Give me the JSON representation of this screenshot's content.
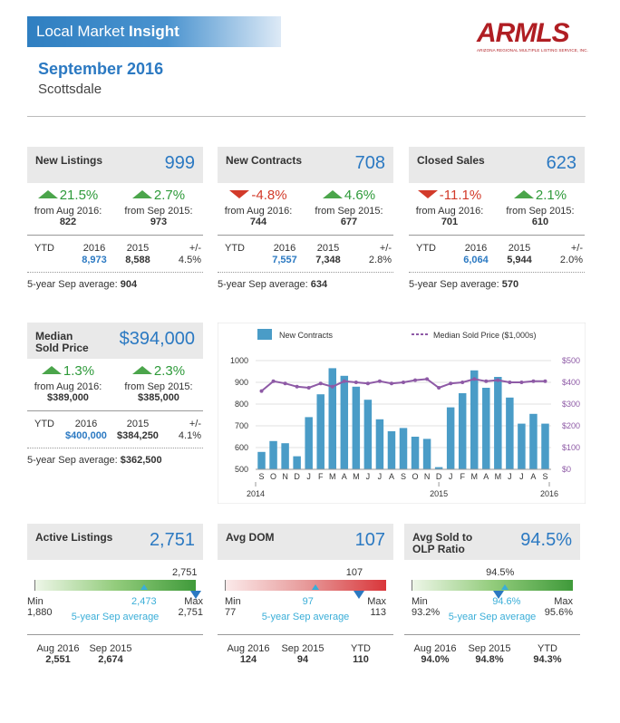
{
  "header": {
    "banner_prefix": "Local Market ",
    "banner_bold": "Insight",
    "logo_text": "ARMLS",
    "logo_sub": "ARIZONA REGIONAL MULTIPLE LISTING SERVICE, INC.",
    "title": "September 2016",
    "subtitle": "Scottsdale"
  },
  "new_listings": {
    "label": "New Listings",
    "value": "999",
    "chg1": {
      "pct": "21.5%",
      "dir": "up",
      "label": "from Aug 2016:",
      "val": "822"
    },
    "chg2": {
      "pct": "2.7%",
      "dir": "up",
      "label": "from Sep 2015:",
      "val": "973"
    },
    "ytd": {
      "label": "YTD",
      "y1": "2016",
      "y2": "2015",
      "pm": "+/-",
      "v1": "8,973",
      "v2": "8,588",
      "pct": "4.5%"
    },
    "avg_label": "5-year Sep average:",
    "avg_val": "904"
  },
  "new_contracts": {
    "label": "New Contracts",
    "value": "708",
    "chg1": {
      "pct": "-4.8%",
      "dir": "down",
      "label": "from Aug 2016:",
      "val": "744"
    },
    "chg2": {
      "pct": "4.6%",
      "dir": "up",
      "label": "from Sep 2015:",
      "val": "677"
    },
    "ytd": {
      "label": "YTD",
      "y1": "2016",
      "y2": "2015",
      "pm": "+/-",
      "v1": "7,557",
      "v2": "7,348",
      "pct": "2.8%"
    },
    "avg_label": "5-year Sep average:",
    "avg_val": "634"
  },
  "closed_sales": {
    "label": "Closed Sales",
    "value": "623",
    "chg1": {
      "pct": "-11.1%",
      "dir": "down",
      "label": "from Aug 2016:",
      "val": "701"
    },
    "chg2": {
      "pct": "2.1%",
      "dir": "up",
      "label": "from Sep 2015:",
      "val": "610"
    },
    "ytd": {
      "label": "YTD",
      "y1": "2016",
      "y2": "2015",
      "pm": "+/-",
      "v1": "6,064",
      "v2": "5,944",
      "pct": "2.0%"
    },
    "avg_label": "5-year Sep average:",
    "avg_val": "570"
  },
  "median_price": {
    "label1": "Median",
    "label2": "Sold Price",
    "value": "$394,000",
    "chg1": {
      "pct": "1.3%",
      "dir": "up",
      "label": "from Aug 2016:",
      "val": "$389,000"
    },
    "chg2": {
      "pct": "2.3%",
      "dir": "up",
      "label": "from Sep 2015:",
      "val": "$385,000"
    },
    "ytd": {
      "label": "YTD",
      "y1": "2016",
      "y2": "2015",
      "pm": "+/-",
      "v1": "$400,000",
      "v2": "$384,250",
      "pct": "4.1%"
    },
    "avg_label": "5-year Sep average:",
    "avg_val": "$362,500"
  },
  "chart_data": {
    "type": "bar",
    "legend": [
      "New Contracts",
      "Median Sold Price ($1,000s)"
    ],
    "categories": [
      "S",
      "O",
      "N",
      "D",
      "J",
      "F",
      "M",
      "A",
      "M",
      "J",
      "J",
      "A",
      "S",
      "O",
      "N",
      "D",
      "J",
      "F",
      "M",
      "A",
      "M",
      "J",
      "J",
      "A",
      "S"
    ],
    "year_labels": [
      "2014",
      "2015",
      "2016"
    ],
    "y_left_ticks": [
      "1000",
      "900",
      "800",
      "700",
      "600",
      "500"
    ],
    "y_right_ticks": [
      "$500",
      "$400",
      "$300",
      "$200",
      "$100",
      "$0"
    ],
    "ylim_left": [
      500,
      1000
    ],
    "ylim_right": [
      0,
      500
    ],
    "series": [
      {
        "name": "New Contracts",
        "axis": "left",
        "color": "#4a9cc7",
        "values": [
          580,
          630,
          620,
          560,
          740,
          845,
          965,
          930,
          880,
          820,
          730,
          675,
          690,
          650,
          640,
          510,
          785,
          850,
          955,
          875,
          925,
          830,
          710,
          755,
          710
        ]
      },
      {
        "name": "Median Sold Price ($1,000s)",
        "axis": "right",
        "color": "#8e5aa6",
        "values": [
          360,
          405,
          395,
          380,
          375,
          395,
          380,
          405,
          400,
          395,
          405,
          395,
          400,
          410,
          415,
          375,
          395,
          400,
          415,
          405,
          410,
          400,
          400,
          405,
          405
        ]
      }
    ]
  },
  "active_listings": {
    "label": "Active Listings",
    "value": "2,751",
    "marker": "2,751",
    "avg": "2,473",
    "avg_label": "5-year Sep average",
    "min_label": "Min",
    "min": "1,880",
    "max_label": "Max",
    "max": "2,751",
    "marker_pos": 1.0,
    "avg_pos": 0.68,
    "stats": [
      {
        "label": "Aug 2016",
        "val": "2,551"
      },
      {
        "label": "Sep 2015",
        "val": "2,674"
      }
    ]
  },
  "avg_dom": {
    "label": "Avg DOM",
    "value": "107",
    "marker": "107",
    "avg": "97",
    "avg_label": "5-year Sep average",
    "min_label": "Min",
    "min": "77",
    "max_label": "Max",
    "max": "113",
    "marker_pos": 0.83,
    "avg_pos": 0.56,
    "stats": [
      {
        "label": "Aug 2016",
        "val": "124"
      },
      {
        "label": "Sep 2015",
        "val": "94"
      },
      {
        "label": "YTD",
        "val": "110"
      }
    ]
  },
  "avg_sold_olp": {
    "label1": "Avg Sold to",
    "label2": "OLP Ratio",
    "value": "94.5%",
    "marker": "94.5%",
    "avg": "94.6%",
    "avg_label": "5-year Sep average",
    "min_label": "Min",
    "min": "93.2%",
    "max_label": "Max",
    "max": "95.6%",
    "marker_pos": 0.54,
    "avg_pos": 0.58,
    "stats": [
      {
        "label": "Aug 2016",
        "val": "94.0%"
      },
      {
        "label": "Sep 2015",
        "val": "94.8%"
      },
      {
        "label": "YTD",
        "val": "94.3%"
      }
    ]
  }
}
